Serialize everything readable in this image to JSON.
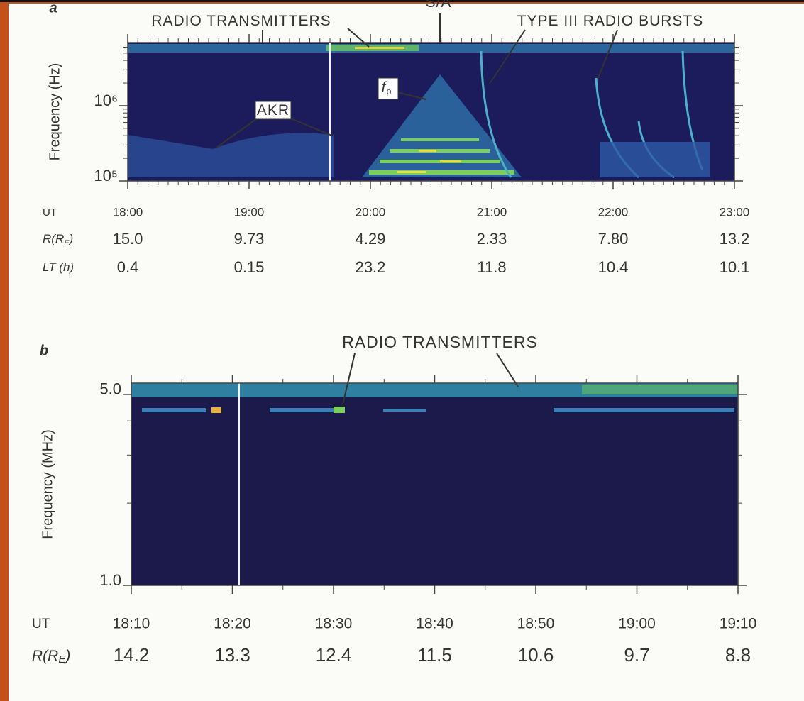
{
  "chart_data": [
    {
      "type": "spectrogram",
      "panel_label": "a",
      "ylabel": "Frequency (Hz)",
      "xlabel": "UT",
      "xlim": [
        1080,
        1380
      ],
      "xticks": [
        {
          "value": 1080,
          "label": "18:00"
        },
        {
          "value": 1140,
          "label": "19:00"
        },
        {
          "value": 1200,
          "label": "20:00"
        },
        {
          "value": 1260,
          "label": "21:00"
        },
        {
          "value": 1320,
          "label": "22:00"
        },
        {
          "value": 1380,
          "label": "23:00"
        }
      ],
      "ylim": [
        100000,
        6900000
      ],
      "y_log": true,
      "yticks": [
        {
          "value": 100000,
          "label": "10⁵"
        },
        {
          "value": 1000000,
          "label": "10⁶"
        }
      ],
      "x_rows": [
        {
          "label": [
            "R(R",
            "E",
            ")"
          ],
          "values": [
            "15.0",
            "9.73",
            "4.29",
            "2.33",
            "7.80",
            "13.2"
          ]
        },
        {
          "label": [
            "LT (h)"
          ],
          "values": [
            "0.4",
            "0.15",
            "23.2",
            "11.8",
            "10.4",
            "10.1"
          ]
        }
      ],
      "annotations": [
        {
          "text": "RADIO TRANSMITTERS"
        },
        {
          "text": "S/A"
        },
        {
          "text": "TYPE III RADIO BURSTS"
        },
        {
          "text": "AKR"
        },
        {
          "text": "f",
          "sub": "p"
        }
      ]
    },
    {
      "type": "spectrogram",
      "panel_label": "b",
      "ylabel": "Frequency (MHz)",
      "xlabel": "UT",
      "xlim": [
        1090,
        1150
      ],
      "xticks": [
        {
          "value": 1090,
          "label": "18:10"
        },
        {
          "value": 1100,
          "label": "18:20"
        },
        {
          "value": 1110,
          "label": "18:30"
        },
        {
          "value": 1120,
          "label": "18:40"
        },
        {
          "value": 1130,
          "label": "18:50"
        },
        {
          "value": 1140,
          "label": "19:00"
        },
        {
          "value": 1150,
          "label": "19:10"
        }
      ],
      "ylim": [
        1.0,
        5.5
      ],
      "y_log": true,
      "yticks": [
        {
          "value": 1.0,
          "label": "1.0"
        },
        {
          "value": 5.0,
          "label": "5.0"
        }
      ],
      "x_rows": [
        {
          "label": [
            "R(R",
            "E",
            ")"
          ],
          "values": [
            "14.2",
            "13.3",
            "12.4",
            "11.5",
            "10.6",
            "9.7",
            "8.8"
          ]
        }
      ],
      "annotations": [
        {
          "text": "RADIO TRANSMITTERS"
        }
      ]
    }
  ]
}
